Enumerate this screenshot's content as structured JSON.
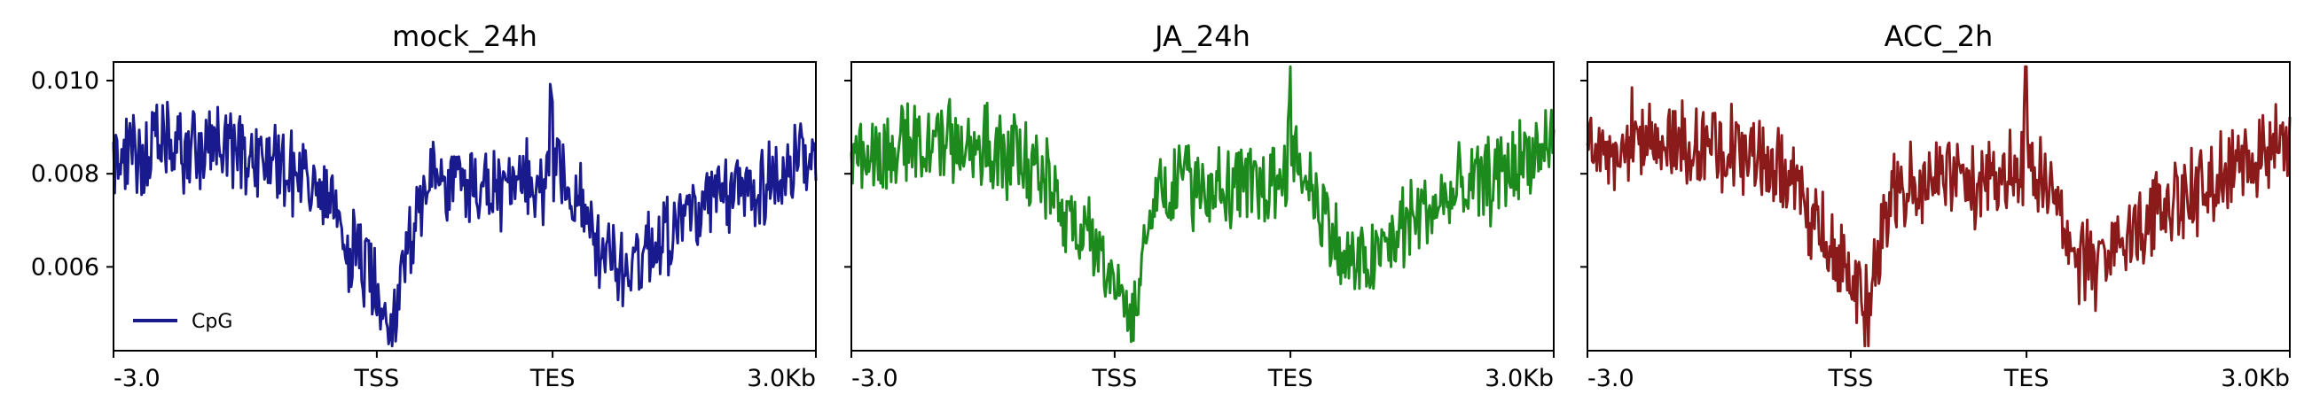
{
  "chart_data": [
    {
      "type": "line",
      "title": "mock_24h",
      "color": "#1a1a8f",
      "xticks": [
        "-3.0",
        "TSS",
        "TES",
        "3.0Kb"
      ],
      "yticks": [
        "0.006",
        "0.008",
        "0.010"
      ],
      "ylim": [
        0.0042,
        0.0104
      ],
      "legend": {
        "label": "CpG",
        "placement": "lower-left"
      },
      "grid": false,
      "series": [
        {
          "name": "CpG",
          "x": [
            0,
            20,
            40,
            60,
            80,
            100,
            120,
            140,
            160,
            180,
            200,
            220,
            240,
            260,
            280,
            300,
            320,
            340,
            360,
            380,
            400,
            420,
            440,
            460,
            480,
            500,
            520,
            540,
            560,
            580,
            600
          ],
          "y": [
            0.0083,
            0.0084,
            0.0086,
            0.0085,
            0.0086,
            0.0085,
            0.0084,
            0.0083,
            0.008,
            0.0074,
            0.0065,
            0.0058,
            0.0049,
            0.0075,
            0.0079,
            0.0078,
            0.0077,
            0.0076,
            0.0078,
            0.0082,
            0.0073,
            0.0061,
            0.006,
            0.0065,
            0.007,
            0.0072,
            0.0074,
            0.0077,
            0.0079,
            0.0081,
            0.0082
          ]
        }
      ]
    },
    {
      "type": "line",
      "title": "JA_24h",
      "color": "#1c8a1c",
      "xticks": [
        "-3.0",
        "TSS",
        "TES",
        "3.0Kb"
      ],
      "yticks": [
        "0.006",
        "0.008",
        "0.010"
      ],
      "ylim": [
        0.0042,
        0.0104
      ],
      "grid": false,
      "series": [
        {
          "x": [
            0,
            20,
            40,
            60,
            80,
            100,
            120,
            140,
            160,
            180,
            200,
            220,
            240,
            260,
            280,
            300,
            320,
            340,
            360,
            380,
            400,
            420,
            440,
            460,
            480,
            500,
            520,
            540,
            560,
            580,
            600
          ],
          "y": [
            0.0085,
            0.0084,
            0.0086,
            0.0087,
            0.0087,
            0.0086,
            0.0085,
            0.0084,
            0.008,
            0.0074,
            0.0066,
            0.0059,
            0.005,
            0.0077,
            0.0079,
            0.0078,
            0.0077,
            0.0077,
            0.0078,
            0.0083,
            0.0074,
            0.0061,
            0.006,
            0.0065,
            0.0071,
            0.0073,
            0.0076,
            0.0078,
            0.0081,
            0.0084,
            0.0086
          ]
        }
      ]
    },
    {
      "type": "line",
      "title": "ACC_2h",
      "color": "#8b1a1a",
      "xticks": [
        "-3.0",
        "TSS",
        "TES",
        "3.0Kb"
      ],
      "yticks": [
        "0.006",
        "0.008",
        "0.010"
      ],
      "ylim": [
        0.0042,
        0.0104
      ],
      "grid": false,
      "series": [
        {
          "x": [
            0,
            20,
            40,
            60,
            80,
            100,
            120,
            140,
            160,
            180,
            200,
            220,
            240,
            260,
            280,
            300,
            320,
            340,
            360,
            380,
            400,
            420,
            440,
            460,
            480,
            500,
            520,
            540,
            560,
            580,
            600
          ],
          "y": [
            0.0085,
            0.0086,
            0.0088,
            0.0088,
            0.0087,
            0.0086,
            0.0086,
            0.0085,
            0.0081,
            0.0075,
            0.0066,
            0.0059,
            0.005,
            0.0078,
            0.008,
            0.0079,
            0.0078,
            0.0077,
            0.0079,
            0.0084,
            0.0074,
            0.0061,
            0.006,
            0.0066,
            0.0071,
            0.0074,
            0.0077,
            0.008,
            0.0082,
            0.0086,
            0.0087
          ]
        }
      ]
    }
  ]
}
